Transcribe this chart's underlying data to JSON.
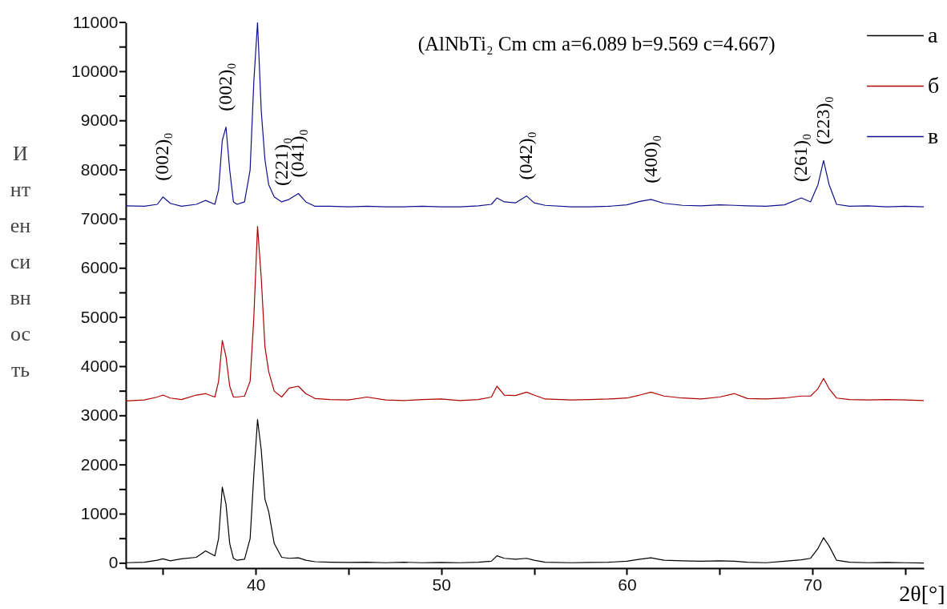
{
  "chart_data": {
    "type": "line",
    "xlabel": "2θ[°]",
    "ylabel": "Интенсивность",
    "x": [
      33,
      34,
      34.7,
      35.0,
      35.4,
      36,
      36.8,
      37.3,
      37.8,
      38.0,
      38.2,
      38.4,
      38.6,
      38.8,
      39.0,
      39.4,
      39.7,
      39.9,
      40.1,
      40.3,
      40.5,
      40.7,
      41.0,
      41.4,
      41.8,
      42.3,
      42.7,
      43.2,
      44,
      45,
      46,
      47,
      48,
      49,
      50,
      51,
      52,
      52.7,
      53.0,
      53.4,
      54,
      54.6,
      55.0,
      55.6,
      57,
      58,
      59,
      60,
      60.7,
      61.3,
      62,
      63,
      64,
      65,
      65.8,
      66.5,
      67.5,
      68.5,
      69.4,
      69.9,
      70.3,
      70.6,
      70.9,
      71.3,
      72,
      73,
      74,
      75,
      76
    ],
    "series": [
      {
        "name": "а",
        "color": "#000000",
        "values": [
          10,
          20,
          60,
          90,
          50,
          90,
          120,
          250,
          150,
          500,
          1550,
          1200,
          400,
          100,
          60,
          80,
          500,
          1800,
          2920,
          2300,
          1300,
          1050,
          400,
          120,
          100,
          110,
          60,
          30,
          20,
          15,
          20,
          10,
          20,
          10,
          15,
          10,
          20,
          40,
          150,
          100,
          80,
          100,
          60,
          20,
          10,
          15,
          20,
          40,
          80,
          110,
          60,
          50,
          40,
          50,
          40,
          20,
          10,
          40,
          70,
          100,
          300,
          520,
          350,
          60,
          20,
          10,
          15,
          10,
          5
        ]
      },
      {
        "name": "б",
        "color": "#b00000",
        "values": [
          3300,
          3320,
          3380,
          3420,
          3360,
          3330,
          3420,
          3450,
          3380,
          3700,
          4530,
          4200,
          3600,
          3380,
          3380,
          3400,
          3700,
          5000,
          6850,
          5800,
          4400,
          3900,
          3500,
          3380,
          3560,
          3600,
          3450,
          3350,
          3330,
          3320,
          3380,
          3320,
          3310,
          3330,
          3340,
          3310,
          3330,
          3380,
          3600,
          3420,
          3410,
          3480,
          3420,
          3340,
          3320,
          3330,
          3340,
          3360,
          3420,
          3480,
          3400,
          3360,
          3340,
          3380,
          3450,
          3350,
          3340,
          3360,
          3400,
          3400,
          3550,
          3760,
          3550,
          3360,
          3330,
          3320,
          3330,
          3320,
          3310
        ]
      },
      {
        "name": "в",
        "color": "#10108c",
        "values": [
          7270,
          7260,
          7300,
          7450,
          7320,
          7260,
          7300,
          7380,
          7300,
          7600,
          8600,
          8870,
          8000,
          7350,
          7300,
          7350,
          8000,
          9800,
          11000,
          9200,
          8200,
          7700,
          7450,
          7350,
          7400,
          7520,
          7350,
          7260,
          7260,
          7250,
          7260,
          7250,
          7250,
          7260,
          7250,
          7250,
          7270,
          7300,
          7430,
          7350,
          7330,
          7470,
          7330,
          7280,
          7250,
          7250,
          7260,
          7290,
          7360,
          7400,
          7320,
          7280,
          7270,
          7290,
          7280,
          7270,
          7260,
          7290,
          7430,
          7350,
          7700,
          8190,
          7700,
          7300,
          7260,
          7270,
          7250,
          7260,
          7250
        ]
      }
    ],
    "xlim": [
      33,
      76
    ],
    "xticks": [
      {
        "value": 35,
        "label": null
      },
      40,
      {
        "value": 45,
        "label": null
      },
      50,
      {
        "value": 55,
        "label": null
      },
      60,
      {
        "value": 65,
        "label": null
      },
      70,
      {
        "value": 75,
        "label": null
      }
    ],
    "ylim": [
      -100,
      11000
    ],
    "yticks": [
      0,
      {
        "value": 500,
        "label": null
      },
      1000,
      {
        "value": 1500,
        "label": null
      },
      2000,
      {
        "value": 2500,
        "label": null
      },
      3000,
      {
        "value": 3500,
        "label": null
      },
      4000,
      {
        "value": 4500,
        "label": null
      },
      5000,
      {
        "value": 5500,
        "label": null
      },
      6000,
      {
        "value": 6500,
        "label": null
      },
      7000,
      {
        "value": 7500,
        "label": null
      },
      8000,
      {
        "value": 8500,
        "label": null
      },
      9000,
      {
        "value": 9500,
        "label": null
      },
      10000,
      {
        "value": 10500,
        "label": null
      },
      11000
    ],
    "annotations": [
      "(AlNbTi₂ Cm cm a=6.089 b=9.569 c=4.667)",
      {
        "text": "(002)₀",
        "x": 35.0,
        "y": 7450
      },
      {
        "text": "(002)₀",
        "x": 38.4,
        "y": 8870
      },
      {
        "text": "(221)₀",
        "x": 41.4,
        "y": 7350
      },
      {
        "text": "(041)₀",
        "x": 42.3,
        "y": 7520
      },
      {
        "text": "(042)₀",
        "x": 54.6,
        "y": 7470
      },
      {
        "text": "(400)₀",
        "x": 61.3,
        "y": 7400
      },
      {
        "text": "(261)₀",
        "x": 69.4,
        "y": 7430
      },
      {
        "text": "(223)₀",
        "x": 70.6,
        "y": 8190
      }
    ],
    "legend": "top right",
    "grid": false,
    "marker": "none",
    "line_style": "solid"
  }
}
